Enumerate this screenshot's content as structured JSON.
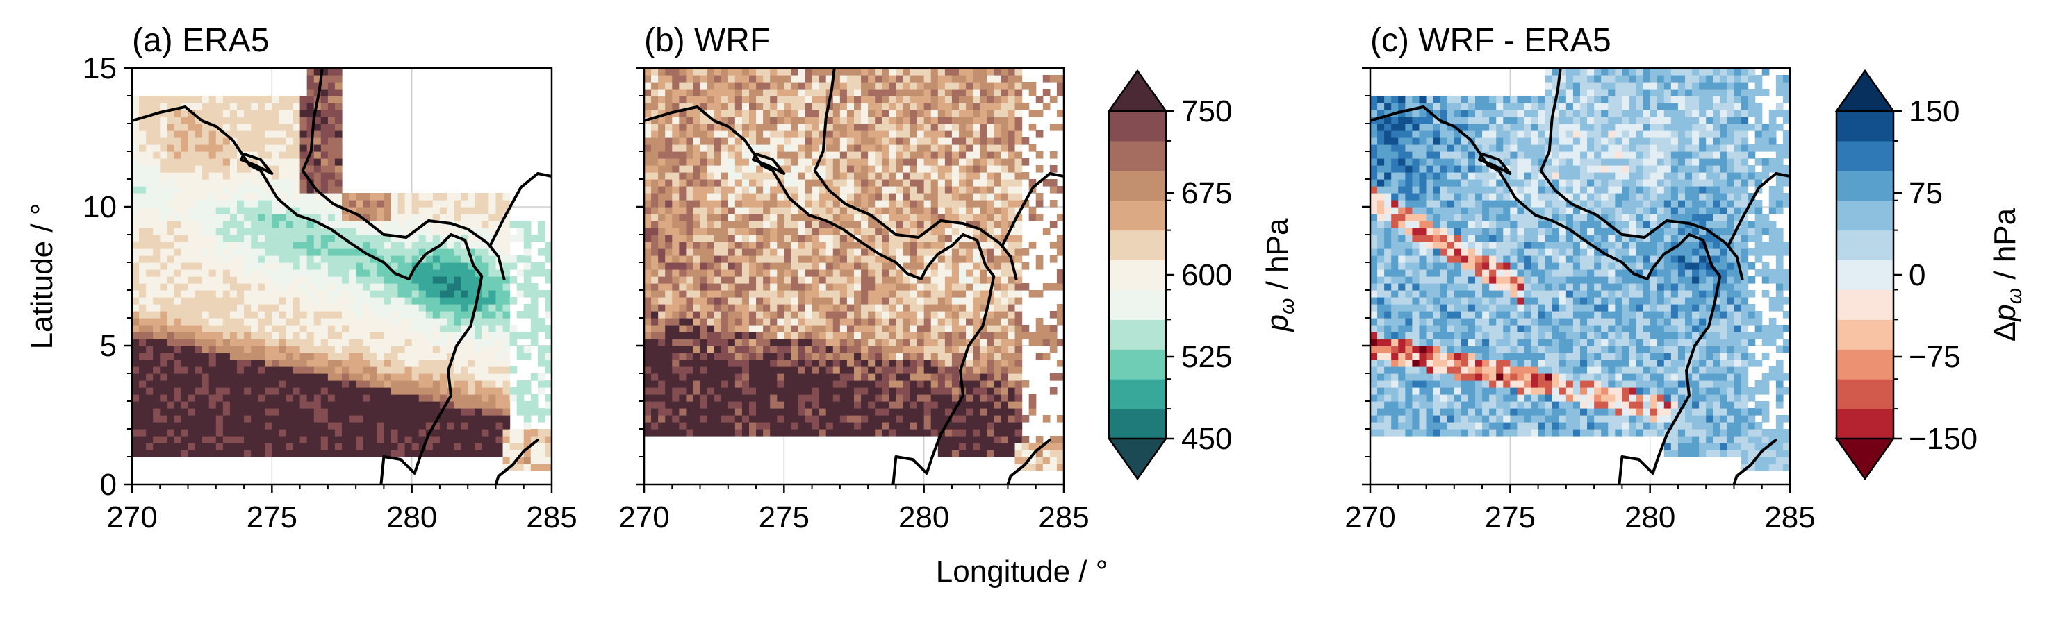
{
  "chart_data": [
    {
      "type": "heatmap",
      "title": "(a) ERA5",
      "ylabel": "Latitude / °",
      "xlim": [
        270,
        285
      ],
      "ylim": [
        0,
        15
      ],
      "xticks": [
        "270",
        "275",
        "280",
        "285"
      ],
      "yticks": [
        "0",
        "5",
        "10",
        "15"
      ],
      "colorbar": "p_omega",
      "grid": true
    },
    {
      "type": "heatmap",
      "title": "(b) WRF",
      "xlabel": "Longitude / °",
      "xlim": [
        270,
        285
      ],
      "ylim": [
        0,
        15
      ],
      "xticks": [
        "270",
        "275",
        "280",
        "285"
      ],
      "yticks": [],
      "colorbar": "p_omega",
      "grid": true
    },
    {
      "type": "heatmap",
      "title": "(c) WRF - ERA5",
      "xlim": [
        270,
        285
      ],
      "ylim": [
        0,
        15
      ],
      "xticks": [
        "270",
        "275",
        "280",
        "285"
      ],
      "yticks": [],
      "colorbar": "delta_p_omega",
      "grid": true
    }
  ],
  "colorbars": {
    "p_omega": {
      "label_symbol": "p",
      "label_sub": "ω",
      "label_unit": " / hPa",
      "min": 450,
      "max": 750,
      "ticks": [
        "450",
        "525",
        "600",
        "675",
        "750"
      ],
      "extend": "both",
      "colors": [
        "#1b4a54",
        "#1f7a7a",
        "#38a89a",
        "#6fcdb6",
        "#b4e4d4",
        "#eef5ef",
        "#f6f2e8",
        "#ecd4b8",
        "#dba984",
        "#c2906e",
        "#a46d60",
        "#834d51",
        "#4b2a35"
      ]
    },
    "delta_p_omega": {
      "label_prefix": "Δ",
      "label_symbol": "p",
      "label_sub": "ω",
      "label_unit": " / hPa",
      "min": -150,
      "max": 150,
      "ticks": [
        "−150",
        "−75",
        "0",
        "75",
        "150"
      ],
      "extend": "both",
      "colors": [
        "#730015",
        "#b4232f",
        "#d25a4d",
        "#ec9272",
        "#f8c2a5",
        "#fbe4d9",
        "#e2edf4",
        "#bad6e9",
        "#8dc0de",
        "#5aa0cc",
        "#2f7ab6",
        "#114f8d",
        "#08305f"
      ]
    }
  }
}
